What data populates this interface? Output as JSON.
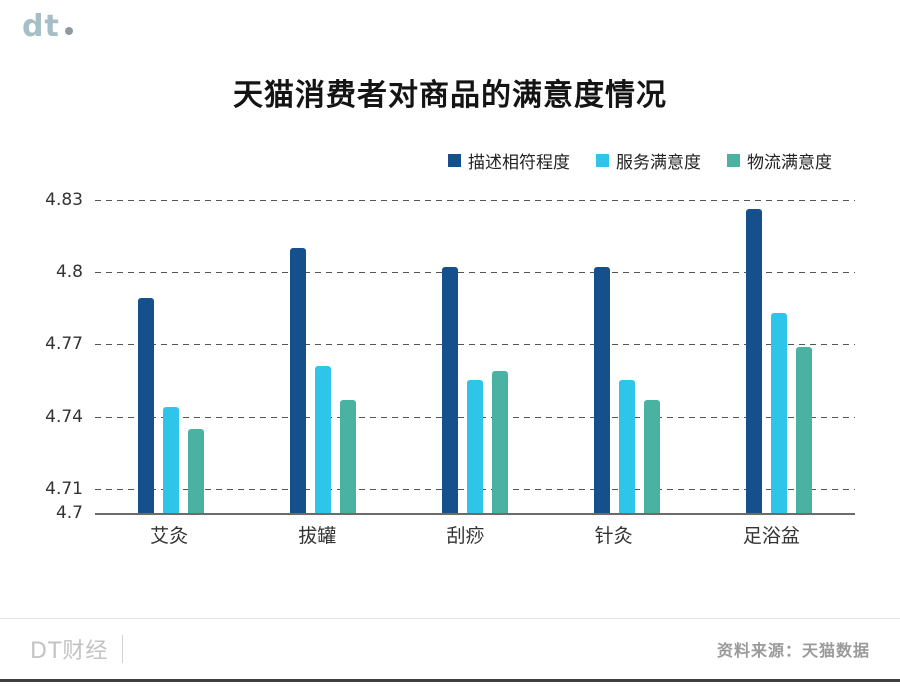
{
  "logo": {
    "text": "dt"
  },
  "title": "天猫消费者对商品的满意度情况",
  "chart_data": {
    "type": "bar",
    "title": "天猫消费者对商品的满意度情况",
    "categories": [
      "艾灸",
      "拔罐",
      "刮痧",
      "针灸",
      "足浴盆"
    ],
    "series": [
      {
        "name": "描述相符程度",
        "color": "#15508d",
        "values": [
          4.789,
          4.81,
          4.802,
          4.802,
          4.826
        ]
      },
      {
        "name": "服务满意度",
        "color": "#2fc4ea",
        "values": [
          4.744,
          4.761,
          4.755,
          4.755,
          4.783
        ]
      },
      {
        "name": "物流满意度",
        "color": "#49b2a1",
        "values": [
          4.735,
          4.747,
          4.759,
          4.747,
          4.769
        ]
      }
    ],
    "xlabel": "",
    "ylabel": "",
    "ylim": [
      4.7,
      4.834
    ],
    "yticks": [
      4.83,
      4.8,
      4.77,
      4.74,
      4.71,
      4.7
    ],
    "grid": "dashed-horizontal",
    "legend_position": "top-center-right"
  },
  "footer": {
    "left": "DT财经",
    "right": "资料来源：天猫数据"
  }
}
